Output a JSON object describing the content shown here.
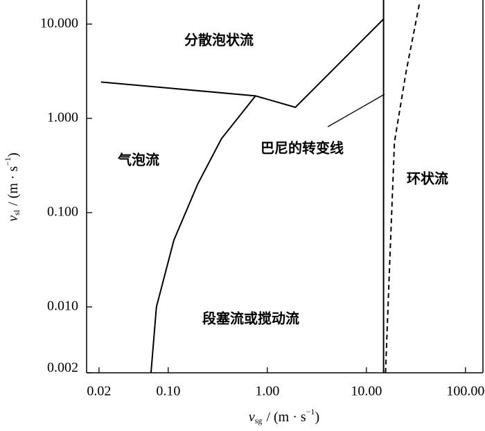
{
  "chart_data": {
    "type": "line",
    "xlog": true,
    "ylog": true,
    "xlim": [
      0.015,
      150
    ],
    "ylim": [
      0.002,
      18
    ],
    "xticks": [
      0.02,
      {
        "value": 0.1,
        "label": "0.10"
      },
      {
        "value": 1,
        "label": "1.00"
      },
      {
        "value": 10,
        "label": "10.00"
      },
      {
        "value": 100,
        "label": "100.00"
      }
    ],
    "yticks": [
      {
        "value": 0.002,
        "label": "0.002"
      },
      {
        "value": 0.01,
        "label": "0.010"
      },
      {
        "value": 0.1,
        "label": "0.100"
      },
      {
        "value": 1,
        "label": "1.000"
      },
      {
        "value": 10,
        "label": "10.000"
      }
    ],
    "xlabel": [
      "v",
      "sg",
      "/ (m · s",
      "−1",
      ")"
    ],
    "ylabel": [
      "v",
      "sl",
      "/ (m · s",
      "−1",
      ")"
    ],
    "series": [
      {
        "color": "#000000",
        "dashed": false,
        "x": [
          0.021,
          0.76,
          1.92,
          14.9
        ],
        "values": [
          2.43,
          1.73,
          1.31,
          11.3
        ]
      },
      {
        "color": "#000000",
        "dashed": false,
        "x": [
          0.067,
          0.076,
          0.114,
          0.198,
          0.345,
          0.76
        ],
        "values": [
          0.002,
          0.01,
          0.051,
          0.2,
          0.61,
          1.73
        ]
      },
      {
        "color": "#000000",
        "dashed": false,
        "x": [
          14.9,
          14.9
        ],
        "values": [
          0.002,
          18
        ]
      },
      {
        "color": "#000000",
        "dashed": true,
        "x": [
          15.6,
          16.9,
          19.2,
          25.1,
          34.5
        ],
        "values": [
          0.002,
          0.0185,
          0.56,
          3.08,
          17
        ]
      }
    ],
    "annotations": [
      "分散泡状流",
      "气泡流",
      "段塞流或搅动流",
      "巴尼的转变线",
      "环状流"
    ]
  }
}
